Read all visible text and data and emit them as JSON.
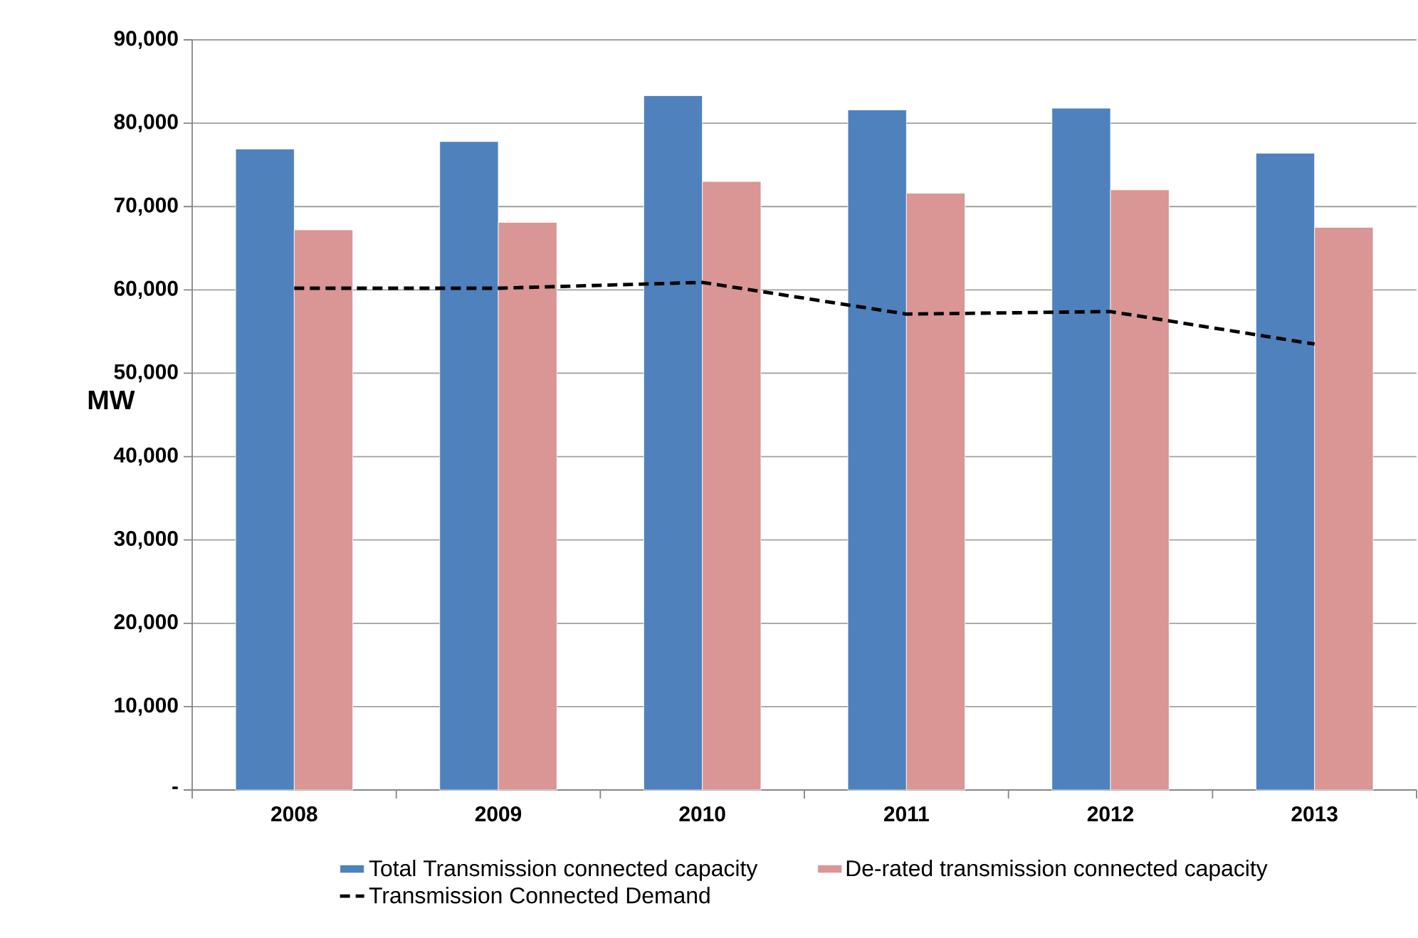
{
  "chart_data": {
    "type": "bar",
    "ylabel": "MW",
    "categories": [
      "2008",
      "2009",
      "2010",
      "2011",
      "2012",
      "2013"
    ],
    "series": [
      {
        "name": "Total Transmission connected capacity",
        "color": "#4f81bd",
        "values": [
          76900,
          77800,
          83300,
          81600,
          81800,
          76400
        ]
      },
      {
        "name": "De-rated transmission connected capacity",
        "color": "#d99694",
        "values": [
          67200,
          68100,
          73000,
          71600,
          72000,
          67500
        ]
      },
      {
        "name": "Transmission Connected Demand",
        "type": "line",
        "line_style": "dashed",
        "color": "#000000",
        "values": [
          60200,
          60200,
          60900,
          57100,
          57400,
          53500
        ]
      }
    ],
    "ylim": [
      0,
      90000
    ],
    "yticks": [
      {
        "value": 0,
        "label": "-"
      },
      {
        "value": 10000,
        "label": "10,000"
      },
      {
        "value": 20000,
        "label": "20,000"
      },
      {
        "value": 30000,
        "label": "30,000"
      },
      {
        "value": 40000,
        "label": "40,000"
      },
      {
        "value": 50000,
        "label": "50,000"
      },
      {
        "value": 60000,
        "label": "60,000"
      },
      {
        "value": 70000,
        "label": "70,000"
      },
      {
        "value": 80000,
        "label": "80,000"
      },
      {
        "value": 90000,
        "label": "90,000"
      }
    ],
    "grid": "y",
    "legend": "bottom"
  }
}
